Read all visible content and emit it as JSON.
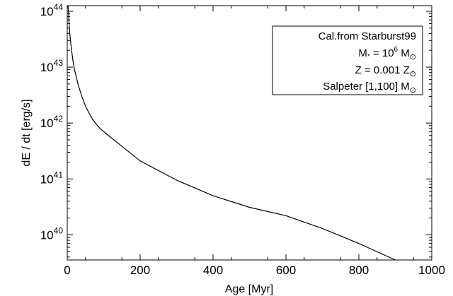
{
  "chart_data": {
    "type": "line",
    "title": "",
    "xlabel": "Age [Myr]",
    "ylabel": "dE / dt [erg/s]",
    "xlim": [
      0,
      1000
    ],
    "ylim_log10": [
      39.55,
      44.1
    ],
    "yscale": "log",
    "grid": false,
    "legend_placement": "top-right",
    "x_ticks": [
      0,
      200,
      400,
      600,
      800,
      1000
    ],
    "x_tick_labels": [
      "0",
      "200",
      "400",
      "600",
      "800",
      "1000"
    ],
    "y_ticks": [
      {
        "base": "10",
        "exp": "40",
        "log10": 40
      },
      {
        "base": "10",
        "exp": "41",
        "log10": 41
      },
      {
        "base": "10",
        "exp": "42",
        "log10": 42
      },
      {
        "base": "10",
        "exp": "43",
        "log10": 43
      },
      {
        "base": "10",
        "exp": "44",
        "log10": 44
      }
    ],
    "series": [
      {
        "x": [
          1,
          2,
          3,
          5,
          7,
          10,
          15,
          20,
          30,
          40,
          50,
          60,
          70,
          80,
          90,
          100,
          200,
          300,
          400,
          500,
          600,
          700,
          800,
          900
        ],
        "y": [
          2e+44,
          1.4e+44,
          1.1e+44,
          6e+43,
          4e+43,
          2.5e+43,
          1.4e+43,
          9e+42,
          4.8e+42,
          3e+42,
          2e+42,
          1.5e+42,
          1.15e+42,
          9.5e+41,
          8e+41,
          7e+41,
          2.1e+41,
          9.5e+40,
          5e+40,
          3.1e+40,
          2.2e+40,
          1.3e+40,
          7e+39,
          3.2e+39
        ]
      }
    ],
    "annotation": {
      "line1": "Cal.from Starburst99",
      "line2_prefix": "M",
      "line2_star": "*",
      "line2_mid": " = 10",
      "line2_exp": "6",
      "line2_unit": " M",
      "line3_prefix": "Z = 0.001 Z",
      "line4_prefix": "Salpeter [1,100] M",
      "sun_symbol": "⊙"
    }
  }
}
